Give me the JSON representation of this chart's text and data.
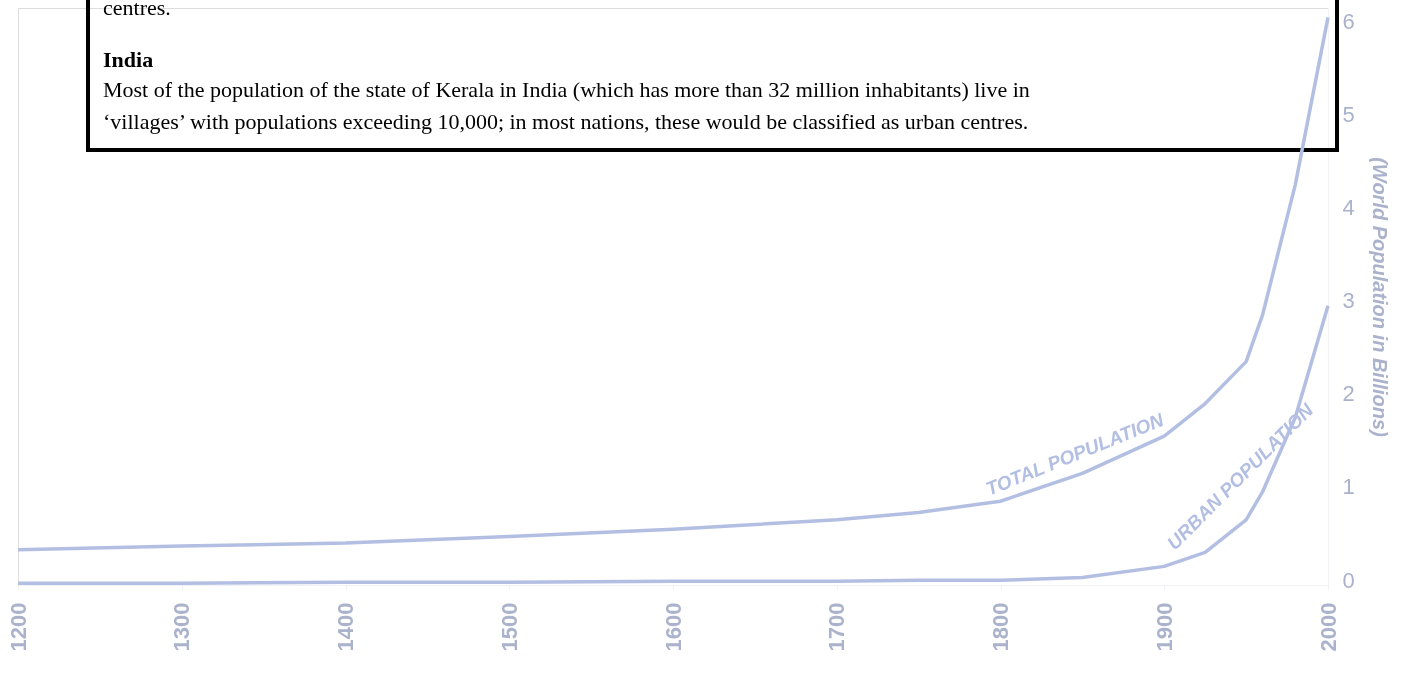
{
  "chart_data": {
    "type": "line",
    "ylabel": "(World Population in Billions)",
    "x": [
      1200,
      1300,
      1400,
      1500,
      1600,
      1700,
      1750,
      1800,
      1850,
      1900,
      1925,
      1950,
      1960,
      1970,
      1980,
      1990,
      2000
    ],
    "series": [
      {
        "name": "TOTAL POPULATION",
        "color": "#b3bfe2",
        "values": [
          0.38,
          0.42,
          0.45,
          0.52,
          0.6,
          0.7,
          0.78,
          0.9,
          1.2,
          1.6,
          1.95,
          2.4,
          2.9,
          3.6,
          4.3,
          5.2,
          6.1
        ]
      },
      {
        "name": "URBAN POPULATION",
        "color": "#b3bfe2",
        "values": [
          0.02,
          0.02,
          0.03,
          0.03,
          0.04,
          0.04,
          0.05,
          0.05,
          0.08,
          0.2,
          0.35,
          0.7,
          1.0,
          1.4,
          1.8,
          2.4,
          3.0
        ]
      }
    ],
    "xlim": [
      1200,
      2000
    ],
    "xticks": [
      1200,
      1300,
      1400,
      1500,
      1600,
      1700,
      1800,
      1900,
      2000
    ],
    "ylim": [
      0,
      6.2
    ],
    "yticks": [
      0,
      1,
      2,
      3,
      4,
      5,
      6
    ],
    "grid": false,
    "legend": false,
    "marker": "none",
    "line_style": "solid",
    "annotations": [
      "centres.",
      "India",
      "Most of the population of the state of Kerala in India (which has more than 32 million inhabitants) live in ‘villages’ with populations exceeding 10,000; in most nations, these would be classified as urban centres."
    ]
  }
}
